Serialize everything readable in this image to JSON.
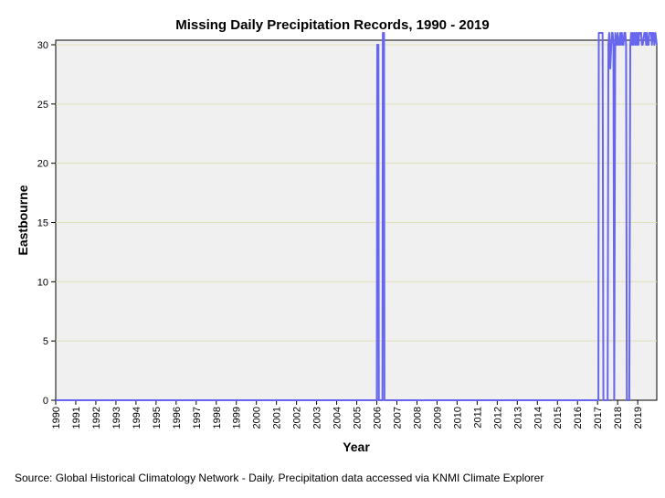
{
  "chart_data": {
    "type": "line",
    "title": "Missing Daily Precipitation Records, 1990 - 2019",
    "xlabel": "Year",
    "ylabel": "Eastbourne",
    "source": "Source: Global Historical Climatology Network - Daily. Precipitation data accessed via KNMI Climate Explorer",
    "xlim": [
      1990,
      2019.95
    ],
    "ylim": [
      0,
      30
    ],
    "y_ticks": [
      0,
      5,
      10,
      15,
      20,
      25,
      30
    ],
    "x_ticks": [
      1990,
      1991,
      1992,
      1993,
      1994,
      1995,
      1996,
      1997,
      1998,
      1999,
      2000,
      2001,
      2002,
      2003,
      2004,
      2005,
      2006,
      2007,
      2008,
      2009,
      2010,
      2011,
      2012,
      2013,
      2014,
      2015,
      2016,
      2017,
      2018,
      2019
    ],
    "grid": true,
    "colors": {
      "line": "#6666ee",
      "plot_bg": "#f0f0f0",
      "grid": "#e0e0b8"
    },
    "series": [
      {
        "name": "Eastbourne",
        "x": [
          1990,
          2006.0,
          2006.02,
          2006.08,
          2006.1,
          2006.28,
          2006.3,
          2006.36,
          2006.38,
          2017.0,
          2017.04,
          2017.06,
          2017.25,
          2017.29,
          2017.42,
          2017.45,
          2017.5,
          2017.54,
          2017.58,
          2017.63,
          2017.71,
          2017.75,
          2017.79,
          2017.83,
          2017.88,
          2017.96,
          2018.0,
          2018.04,
          2018.08,
          2018.13,
          2018.17,
          2018.21,
          2018.25,
          2018.29,
          2018.33,
          2018.38,
          2018.42,
          2018.46,
          2018.5,
          2018.58,
          2018.63,
          2018.67,
          2018.71,
          2018.75,
          2018.79,
          2018.83,
          2018.88,
          2018.92,
          2018.96,
          2019.0,
          2019.04,
          2019.08,
          2019.13,
          2019.17,
          2019.21,
          2019.25,
          2019.33,
          2019.38,
          2019.42,
          2019.46,
          2019.5,
          2019.54,
          2019.58,
          2019.63,
          2019.67,
          2019.71,
          2019.75,
          2019.79,
          2019.83,
          2019.88,
          2019.95
        ],
        "values": [
          0,
          0,
          30,
          30,
          0,
          0,
          31,
          31,
          0,
          0,
          0,
          31,
          31,
          0,
          0,
          0,
          0,
          30,
          31,
          28,
          31,
          31,
          30,
          0,
          31,
          30,
          31,
          30,
          30,
          31,
          30,
          31,
          30,
          30,
          31,
          31,
          30,
          0,
          0,
          0,
          30,
          31,
          30,
          31,
          30,
          31,
          30,
          31,
          30,
          31,
          30,
          31,
          31,
          31,
          30,
          30,
          31,
          31,
          30,
          31,
          30,
          30,
          31,
          31,
          31,
          30,
          31,
          31,
          30,
          31,
          30
        ]
      }
    ]
  }
}
